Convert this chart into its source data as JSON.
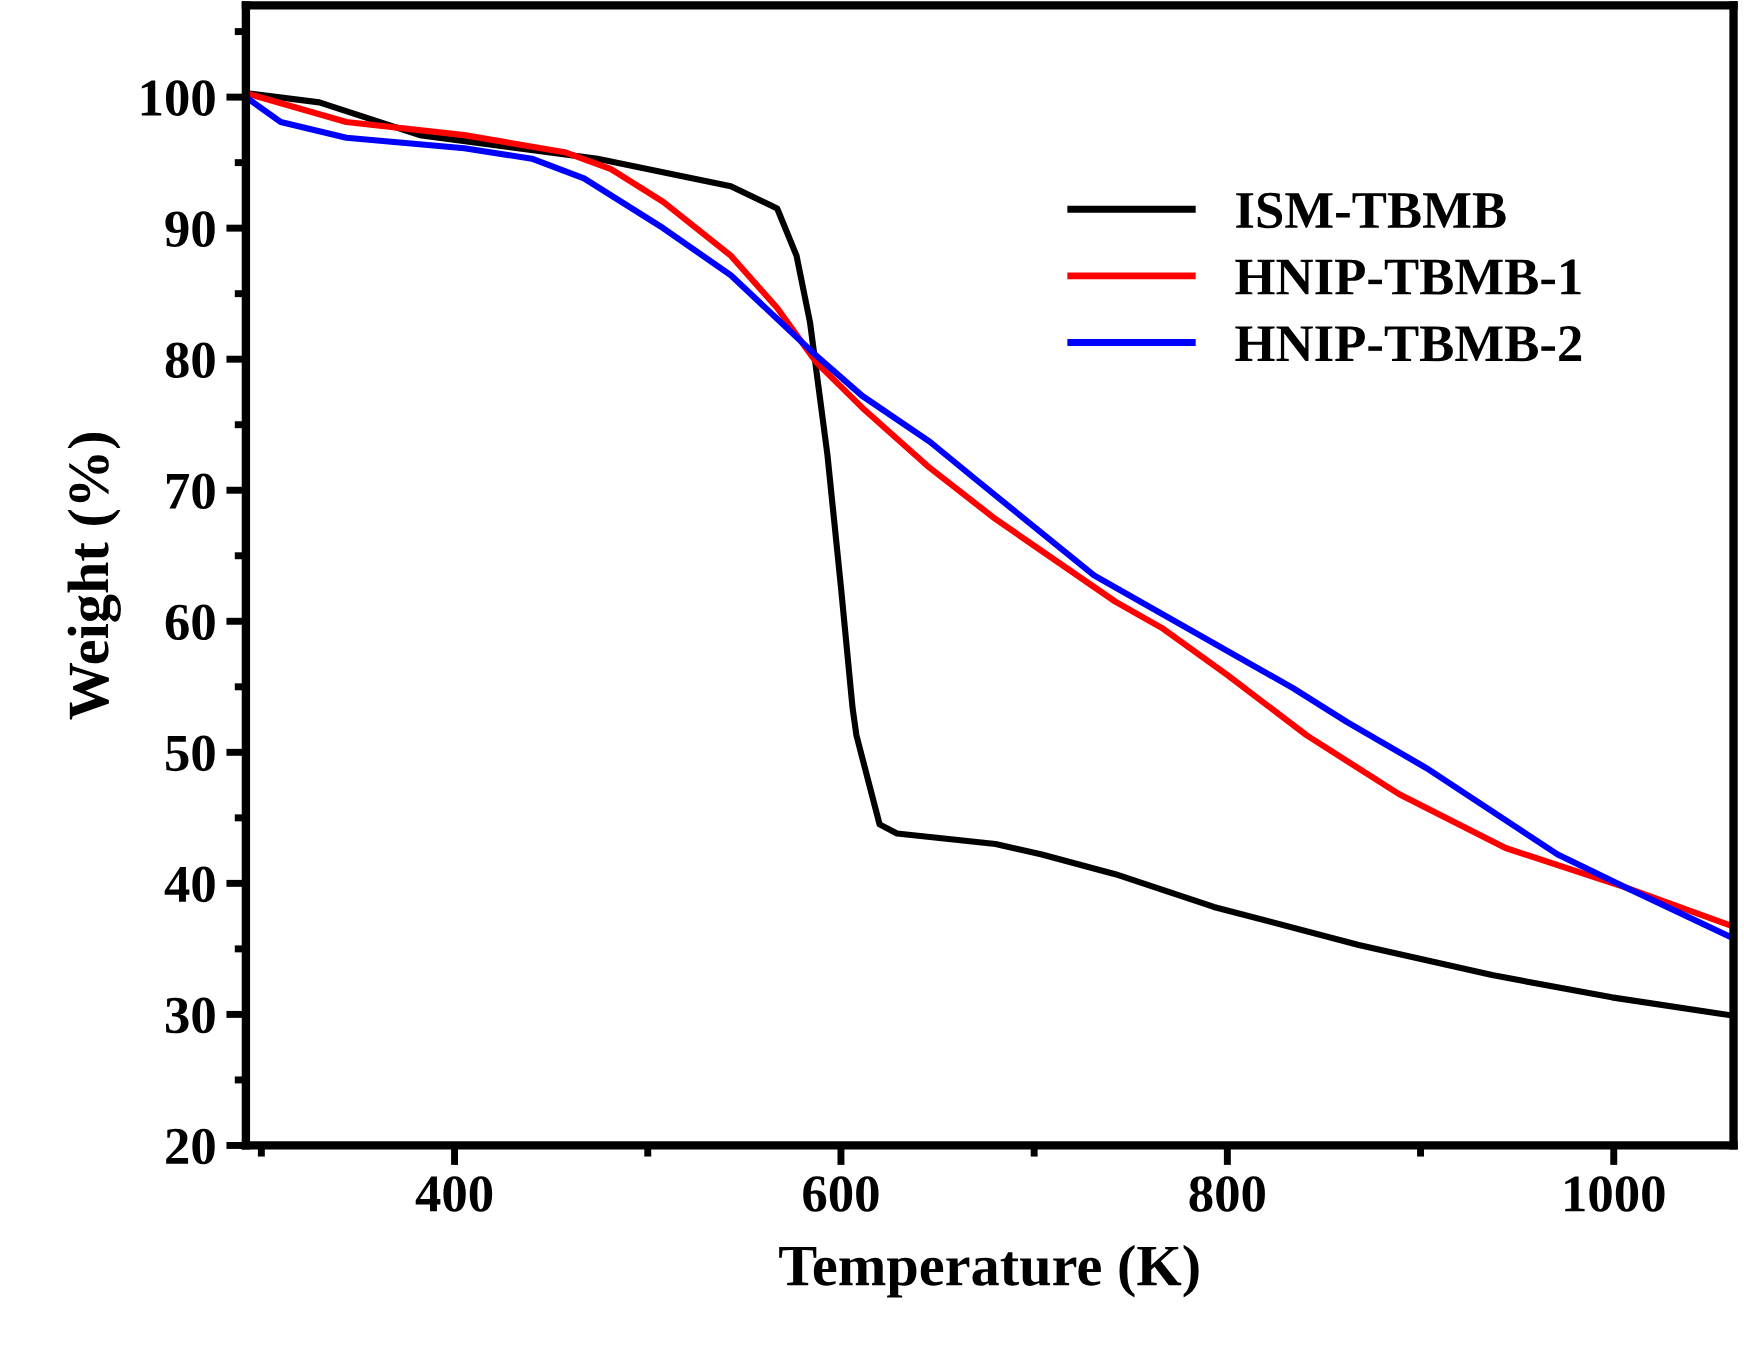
{
  "chart_data": {
    "type": "line",
    "xlabel": "Temperature (K)",
    "ylabel": "Weight (%)",
    "xlim": [
      292,
      1062
    ],
    "ylim": [
      20,
      107
    ],
    "xticks": [
      {
        "value": 300,
        "label": null
      },
      400,
      {
        "value": 500,
        "label": null
      },
      600,
      {
        "value": 700,
        "label": null
      },
      800,
      {
        "value": 900,
        "label": null
      },
      1000
    ],
    "yticks": [
      20,
      {
        "value": 25,
        "label": null
      },
      30,
      {
        "value": 35,
        "label": null
      },
      40,
      {
        "value": 45,
        "label": null
      },
      50,
      {
        "value": 55,
        "label": null
      },
      60,
      {
        "value": 65,
        "label": null
      },
      70,
      {
        "value": 75,
        "label": null
      },
      80,
      {
        "value": 85,
        "label": null
      },
      90,
      {
        "value": 95,
        "label": null
      },
      100,
      {
        "value": 105,
        "label": null
      }
    ],
    "grid": false,
    "legend": "top right",
    "marker": "none",
    "line_style": "solid",
    "series": [
      {
        "name": "ISM-TBMB",
        "color": "#000000",
        "x": [
          292,
          330,
          382,
          474,
          543,
          567,
          577,
          584,
          593,
          600,
          606,
          608,
          620,
          629,
          680,
          704,
          742,
          793,
          868,
          937,
          999,
          1062
        ],
        "values": [
          100.3,
          99.6,
          97.1,
          95.3,
          93.2,
          91.5,
          87.9,
          82.8,
          72.7,
          62.6,
          53.4,
          51.3,
          44.5,
          43.8,
          43.0,
          42.2,
          40.7,
          38.2,
          35.3,
          33.0,
          31.3,
          29.9
        ]
      },
      {
        "name": "HNIP-TBMB-1",
        "color": "#ff0000",
        "x": [
          292,
          344,
          405,
          457,
          481,
          508,
          543,
          567,
          587,
          611,
          646,
          680,
          742,
          766,
          800,
          841,
          889,
          944,
          1006,
          1062
        ],
        "values": [
          100.3,
          98.1,
          97.1,
          95.8,
          94.5,
          92.0,
          87.9,
          83.9,
          79.8,
          76.3,
          71.7,
          67.8,
          61.5,
          59.5,
          55.9,
          51.3,
          46.8,
          42.7,
          39.7,
          36.7
        ]
      },
      {
        "name": "HNIP-TBMB-2",
        "color": "#0000ff",
        "x": [
          292,
          310,
          344,
          405,
          440,
          467,
          508,
          543,
          587,
          611,
          646,
          670,
          731,
          834,
          862,
          903,
          971,
          1006,
          1062
        ],
        "values": [
          100.0,
          98.1,
          96.9,
          96.1,
          95.3,
          93.8,
          90.0,
          86.4,
          80.3,
          77.2,
          73.7,
          70.8,
          63.5,
          54.9,
          52.3,
          48.8,
          42.2,
          39.7,
          35.8
        ]
      }
    ]
  }
}
